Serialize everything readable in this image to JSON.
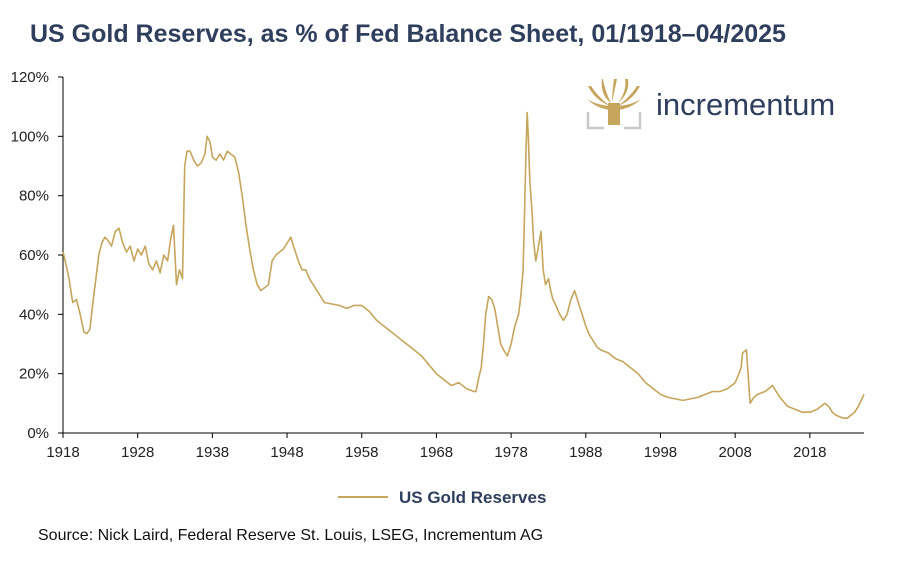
{
  "title": "US Gold Reserves, as % of Fed Balance Sheet, 01/1918–04/2025",
  "source": "Source: Nick Laird, Federal Reserve St. Louis, LSEG, Incrementum AG",
  "brand": {
    "name": "incrementum",
    "logo_icon": "tree-logo-icon",
    "colors": {
      "gold": "#c6a55c",
      "navy": "#2f3e5c"
    }
  },
  "chart_data": {
    "type": "line",
    "xlim": [
      1918,
      2025.25
    ],
    "ylim": [
      0,
      120
    ],
    "y_tick_values": [
      0,
      20,
      40,
      60,
      80,
      100,
      120
    ],
    "y_tick_labels": [
      "0%",
      "20%",
      "40%",
      "60%",
      "80%",
      "100%",
      "120%"
    ],
    "x_tick_values": [
      1918,
      1928,
      1938,
      1948,
      1958,
      1968,
      1978,
      1988,
      1998,
      2008,
      2018
    ],
    "x_tick_labels": [
      "1918",
      "1928",
      "1938",
      "1948",
      "1958",
      "1968",
      "1978",
      "1988",
      "1998",
      "2008",
      "2018"
    ],
    "grid": false,
    "legend_position": "bottom",
    "series": [
      {
        "name": "US Gold Reserves",
        "color": "#c6a55c",
        "x": [
          1918,
          1918.3,
          1918.8,
          1919.3,
          1919.8,
          1920.3,
          1920.8,
          1921.2,
          1921.6,
          1922,
          1922.4,
          1922.8,
          1923.2,
          1923.6,
          1924,
          1924.5,
          1925,
          1925.5,
          1926,
          1926.5,
          1927,
          1927.5,
          1928,
          1928.5,
          1929,
          1929.5,
          1930,
          1930.5,
          1931,
          1931.5,
          1932,
          1932.4,
          1932.8,
          1933.2,
          1933.6,
          1934,
          1934.3,
          1934.6,
          1935,
          1935.5,
          1936,
          1936.5,
          1937,
          1937.3,
          1937.7,
          1938,
          1938.5,
          1939,
          1939.5,
          1940,
          1940.5,
          1941,
          1941.5,
          1942,
          1942.5,
          1943,
          1943.5,
          1944,
          1944.5,
          1945,
          1945.5,
          1946,
          1946.5,
          1947,
          1947.5,
          1948,
          1948.5,
          1949,
          1949.5,
          1950,
          1950.5,
          1951,
          1951.5,
          1952,
          1952.5,
          1953,
          1954,
          1955,
          1956,
          1957,
          1958,
          1959,
          1960,
          1961,
          1962,
          1963,
          1964,
          1965,
          1966,
          1967,
          1968,
          1969,
          1970,
          1971,
          1972,
          1972.5,
          1973,
          1973.3,
          1973.6,
          1974,
          1974.3,
          1974.6,
          1975,
          1975.4,
          1975.8,
          1976.2,
          1976.6,
          1977,
          1977.5,
          1978,
          1978.5,
          1979,
          1979.3,
          1979.6,
          1979.8,
          1980,
          1980.15,
          1980.3,
          1980.5,
          1980.8,
          1981,
          1981.3,
          1981.6,
          1982,
          1982.3,
          1982.6,
          1983,
          1983.3,
          1983.6,
          1984,
          1984.5,
          1985,
          1985.5,
          1986,
          1986.5,
          1987,
          1987.5,
          1988,
          1988.5,
          1989,
          1989.5,
          1990,
          1991,
          1992,
          1993,
          1994,
          1995,
          1996,
          1997,
          1998,
          1999,
          2000,
          2001,
          2002,
          2003,
          2004,
          2005,
          2006,
          2007,
          2008,
          2008.5,
          2008.8,
          2009,
          2009.5,
          2010,
          2010.5,
          2011,
          2011.5,
          2012,
          2012.5,
          2013,
          2013.5,
          2014,
          2015,
          2016,
          2017,
          2018,
          2018.5,
          2019,
          2019.5,
          2020,
          2020.5,
          2021,
          2021.5,
          2022,
          2022.5,
          2023,
          2023.5,
          2024,
          2024.5,
          2025.25
        ],
        "values": [
          61,
          58,
          52,
          44,
          45,
          40,
          34,
          33.5,
          35,
          44,
          52,
          60,
          64,
          66,
          65,
          63,
          68,
          69,
          64,
          61,
          63,
          58,
          62,
          60,
          63,
          57,
          55,
          58,
          54,
          60,
          58,
          65,
          70,
          50,
          55,
          52,
          90,
          95,
          95,
          92,
          90,
          91,
          94,
          100,
          98,
          93,
          92,
          94,
          92,
          95,
          94,
          93,
          88,
          80,
          70,
          62,
          55,
          50,
          48,
          49,
          50,
          58,
          60,
          61,
          62,
          64,
          66,
          62,
          58,
          55,
          55,
          52,
          50,
          48,
          46,
          44,
          43.5,
          43,
          42,
          43,
          43,
          41,
          38,
          36,
          34,
          32,
          30,
          28,
          26,
          23,
          20,
          18,
          16,
          17,
          15,
          14.5,
          14,
          14,
          18,
          22,
          30,
          40,
          46,
          45,
          42,
          36,
          30,
          28,
          26,
          30,
          36,
          40,
          46,
          55,
          75,
          95,
          108,
          100,
          85,
          75,
          65,
          58,
          62,
          68,
          55,
          50,
          52,
          48,
          45,
          43,
          40,
          38,
          40,
          45,
          48,
          44,
          40,
          36,
          33,
          31,
          29,
          28,
          27,
          25,
          24,
          22,
          20,
          17,
          15,
          13,
          12,
          11.5,
          11,
          11.5,
          12,
          13,
          14,
          14,
          15,
          17,
          20,
          22,
          27,
          28,
          10,
          12,
          13,
          13.5,
          14,
          15,
          16,
          14,
          12,
          9,
          8,
          7,
          7,
          7.5,
          8,
          9,
          10,
          9,
          7,
          6,
          5.5,
          5,
          5,
          6,
          7,
          9,
          13
        ]
      }
    ]
  }
}
